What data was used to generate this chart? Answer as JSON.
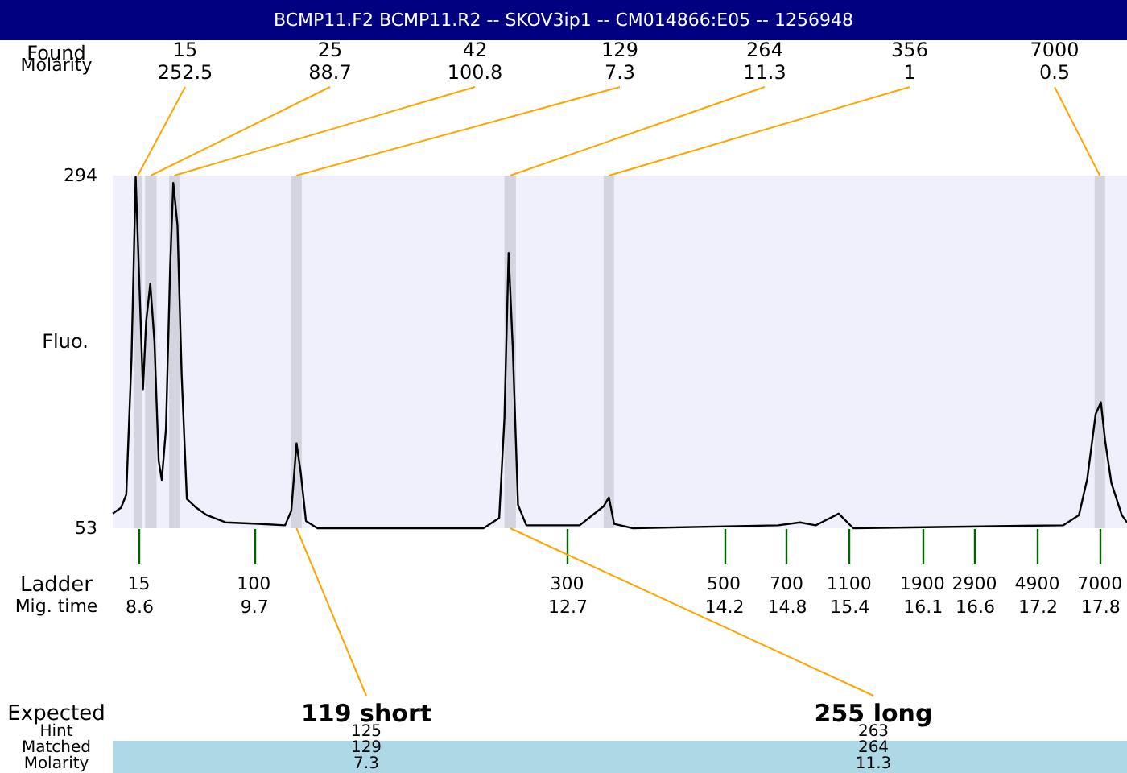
{
  "chart_data": {
    "type": "line",
    "title": "BCMP11.F2  BCMP11.R2 -- SKOV3ip1 -- CM014866:E05 -- 1256948",
    "ylabel": "Fluo.",
    "x": [
      8.35,
      8.43,
      8.48,
      8.53,
      8.57,
      8.6,
      8.64,
      8.67,
      8.71,
      8.75,
      8.79,
      8.82,
      8.86,
      8.9,
      8.93,
      8.97,
      9.01,
      9.06,
      9.15,
      9.25,
      9.43,
      9.74,
      10.0,
      10.06,
      10.11,
      10.15,
      10.2,
      10.31,
      11.9,
      12.05,
      12.1,
      12.14,
      12.18,
      12.23,
      12.31,
      12.82,
      13.05,
      13.1,
      13.15,
      13.33,
      14.72,
      14.93,
      15.08,
      15.3,
      15.44,
      17.45,
      17.6,
      17.68,
      17.76,
      17.81,
      17.85,
      17.91,
      18.01,
      18.06
    ],
    "series": [
      {
        "color": "#000000",
        "values": [
          63,
          67,
          76,
          169,
          293,
          231,
          148,
          194,
          220,
          180,
          99,
          86,
          121,
          231,
          289,
          260,
          158,
          73,
          67,
          62,
          57,
          56,
          55,
          65,
          111,
          91,
          58,
          53,
          53,
          60,
          128,
          241,
          176,
          69,
          55,
          55,
          68,
          74,
          56,
          53,
          55,
          57,
          55,
          63,
          53,
          55,
          62,
          87,
          131,
          139,
          113,
          84,
          62,
          57
        ]
      }
    ],
    "xlim": [
      8.35,
      18.06
    ],
    "xticks": [
      8.6,
      9.7,
      12.7,
      14.2,
      14.8,
      15.4,
      16.1,
      16.6,
      17.2,
      17.8
    ],
    "ylim": [
      53,
      294
    ],
    "yticks": [
      53,
      294
    ],
    "bands": [
      {
        "axis": "x",
        "from": 8.55,
        "to": 8.63,
        "label": "15\n252.5",
        "color": "#d4d4e0"
      },
      {
        "axis": "x",
        "from": 8.66,
        "to": 8.77,
        "label": "25\n88.7",
        "color": "#d4d4e0"
      },
      {
        "axis": "x",
        "from": 8.89,
        "to": 8.99,
        "label": "42\n100.8",
        "color": "#d4d4e0"
      },
      {
        "axis": "x",
        "from": 10.06,
        "to": 10.16,
        "label": "129\n7.3",
        "color": "#d4d4e0"
      },
      {
        "axis": "x",
        "from": 12.1,
        "to": 12.21,
        "label": "264\n11.3",
        "color": "#d4d4e0"
      },
      {
        "axis": "x",
        "from": 13.05,
        "to": 13.15,
        "label": "356\n1",
        "color": "#d4d4e0"
      },
      {
        "axis": "x",
        "from": 17.75,
        "to": 17.85,
        "label": "7000\n0.5",
        "color": "#d4d4e0"
      }
    ],
    "annotations": [
      "Found",
      "Molarity",
      "Ladder",
      "Mig. time",
      "Expected",
      "Hint",
      "Matched",
      "Molarity",
      "15",
      "100",
      "300",
      "500",
      "700",
      "1100",
      "1900",
      "2900",
      "4900",
      "7000",
      "125",
      "129",
      "7.3",
      "263",
      "264",
      "11.3",
      {
        "text": "119 short",
        "x": 10.11
      },
      {
        "text": "255 long",
        "x": 12.155
      }
    ],
    "grid": false
  }
}
